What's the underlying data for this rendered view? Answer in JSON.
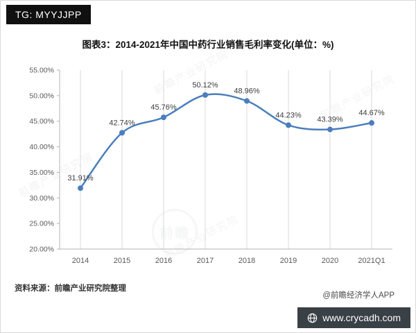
{
  "header": {
    "tag_badge": "TG: MYYJJPP"
  },
  "chart_data": {
    "type": "line",
    "title": "图表3：2014-2021年中国中药行业销售毛利率变化(单位：%)",
    "categories": [
      "2014",
      "2015",
      "2016",
      "2017",
      "2018",
      "2019",
      "2020",
      "2021Q1"
    ],
    "values": [
      31.91,
      42.74,
      45.76,
      50.12,
      48.96,
      44.23,
      43.39,
      44.67
    ],
    "data_labels": [
      "31.91%",
      "42.74%",
      "45.76%",
      "50.12%",
      "48.96%",
      "44.23%",
      "43.39%",
      "44.67%"
    ],
    "ylim": [
      20,
      55
    ],
    "ytick_step": 5,
    "ytick_labels": [
      "20.00%",
      "25.00%",
      "30.00%",
      "35.00%",
      "40.00%",
      "45.00%",
      "50.00%",
      "55.00%"
    ],
    "xlabel": "",
    "ylabel": "",
    "grid": "vertical-only",
    "legend": "none",
    "line_color": "#4a7ebc",
    "gridline_color": "#d8d8d8",
    "axis_color": "#b3b3b3",
    "tick_text_color": "#595959",
    "data_label_color": "#3d3d3d"
  },
  "footer": {
    "source": "资料来源：前瞻产业研究院整理",
    "credit": "@前瞻经济学人APP",
    "site_badge": "www.crycadh.com"
  },
  "watermark": {
    "text": "前瞻产业研究院",
    "brand": "前瞻"
  }
}
